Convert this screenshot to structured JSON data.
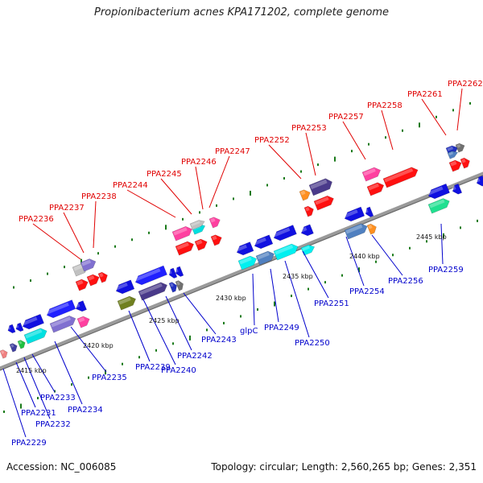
{
  "title": "Propionibacterium acnes KPA171202, complete genome",
  "accession_text": "Accession: NC_006085",
  "summary_text": "Topology: circular; Length: 2,560,265 bp; Genes: 2,351",
  "colors": {
    "top_label": "#e00000",
    "bottom_label": "#0000cc",
    "backbone": "#999999",
    "tick": "#1a7a1a"
  },
  "kbp_labels": [
    "2415 kbp",
    "2420 kbp",
    "2425 kbp",
    "2430 kbp",
    "2435 kbp",
    "2440 kbp",
    "2445 kbp"
  ],
  "top_labels": [
    "PPA2236",
    "PPA2237",
    "PPA2238",
    "PPA2244",
    "PPA2245",
    "PPA2246",
    "PPA2247",
    "PPA2252",
    "PPA2253",
    "PPA2257",
    "PPA2258",
    "PPA2261",
    "PPA2262"
  ],
  "bottom_labels": [
    "PPA2229",
    "PPA2231",
    "PPA2232",
    "PPA2233",
    "PPA2234",
    "PPA2235",
    "PPA2239",
    "PPA2240",
    "PPA2242",
    "PPA2243",
    "glpC",
    "PPA2249",
    "PPA2250",
    "PPA2251",
    "PPA2254",
    "PPA2256",
    "PPA2259"
  ]
}
